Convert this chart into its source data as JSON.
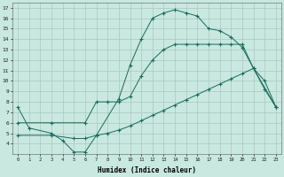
{
  "title": "",
  "xlabel": "Humidex (Indice chaleur)",
  "bg_color": "#c8e8e0",
  "grid_color": "#a8c8c0",
  "line_color": "#1a6b5a",
  "xlim": [
    -0.5,
    23.5
  ],
  "ylim": [
    3.0,
    17.5
  ],
  "xticks": [
    0,
    1,
    2,
    3,
    4,
    5,
    6,
    7,
    8,
    9,
    10,
    11,
    12,
    13,
    14,
    15,
    16,
    17,
    18,
    19,
    20,
    21,
    22,
    23
  ],
  "yticks": [
    4,
    5,
    6,
    7,
    8,
    9,
    10,
    11,
    12,
    13,
    14,
    15,
    16,
    17
  ],
  "curve1_x": [
    0,
    1,
    3,
    4,
    5,
    6,
    7,
    9,
    10,
    11,
    12,
    13,
    14,
    15,
    16,
    17,
    18,
    19,
    20,
    21,
    22,
    23
  ],
  "curve1_y": [
    7.5,
    5.5,
    5.0,
    4.3,
    3.2,
    3.2,
    4.8,
    8.3,
    11.5,
    14.0,
    16.0,
    16.5,
    16.8,
    16.5,
    16.2,
    15.0,
    14.8,
    14.2,
    13.2,
    11.2,
    9.2,
    7.5
  ],
  "curve2_x": [
    0,
    3,
    6,
    7,
    8,
    9,
    10,
    11,
    12,
    13,
    14,
    15,
    16,
    17,
    18,
    19,
    20,
    21,
    22,
    23
  ],
  "curve2_y": [
    6.0,
    6.0,
    6.0,
    8.0,
    8.0,
    8.0,
    8.5,
    10.5,
    12.0,
    13.0,
    13.5,
    13.5,
    13.5,
    13.5,
    13.5,
    13.5,
    13.5,
    11.2,
    10.0,
    7.5
  ],
  "curve3_x": [
    0,
    3,
    5,
    6,
    7,
    8,
    9,
    10,
    11,
    12,
    13,
    14,
    15,
    16,
    17,
    18,
    19,
    20,
    21,
    23
  ],
  "curve3_y": [
    4.8,
    4.8,
    4.5,
    4.5,
    4.8,
    5.0,
    5.3,
    5.7,
    6.2,
    6.7,
    7.2,
    7.7,
    8.2,
    8.7,
    9.2,
    9.7,
    10.2,
    10.7,
    11.2,
    7.5
  ]
}
